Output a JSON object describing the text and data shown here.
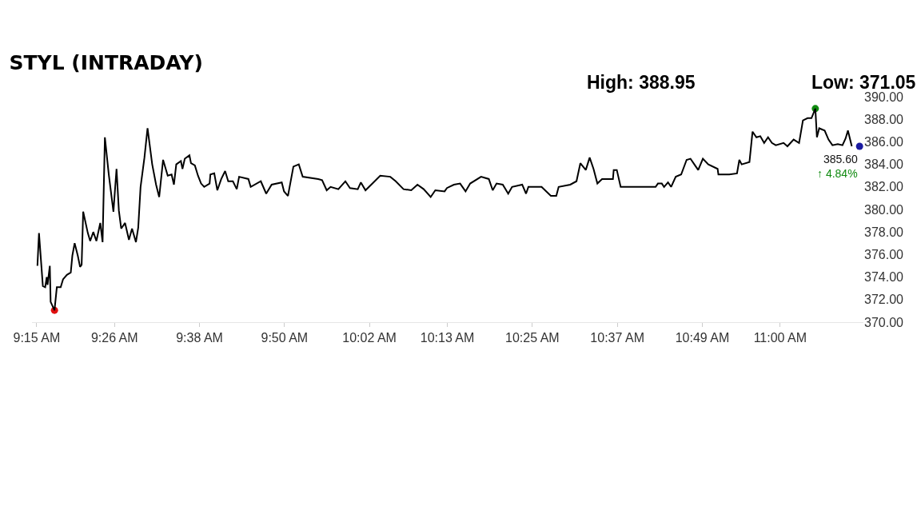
{
  "chart_data": {
    "type": "line",
    "title": "STYL (INTRADAY)",
    "annotations": [
      "High: 388.95",
      "Low: 371.05",
      {
        "text": "385.60",
        "x": 11.1869,
        "y": 385.6
      },
      {
        "text": "↑ 4.84%",
        "x": 11.1869,
        "y": 385.6
      }
    ],
    "series": [
      {
        "color": "#000000",
        "x": [
          9.2518,
          9.2555,
          9.2646,
          9.2701,
          9.2737,
          9.2756,
          9.281,
          9.2829,
          9.292,
          9.2975,
          9.3066,
          9.3121,
          9.3212,
          9.3303,
          9.334,
          9.3394,
          9.3468,
          9.3522,
          9.3559,
          9.3595,
          9.3705,
          9.376,
          9.3833,
          9.3906,
          9.3997,
          9.4052,
          9.4106,
          9.4198,
          9.4307,
          9.438,
          9.4435,
          9.449,
          9.4581,
          9.4672,
          9.4745,
          9.4837,
          9.4891,
          9.4946,
          9.5037,
          9.511,
          9.522,
          9.5311,
          9.5384,
          9.5476,
          9.5585,
          9.5676,
          9.5731,
          9.5786,
          9.5895,
          9.5932,
          9.5987,
          9.6096,
          9.6133,
          9.6224,
          9.6297,
          9.637,
          9.6443,
          9.6571,
          9.6589,
          9.668,
          9.6753,
          9.6845,
          9.6936,
          9.7009,
          9.7119,
          9.721,
          9.7265,
          9.7484,
          9.7538,
          9.7776,
          9.7903,
          9.8031,
          9.8269,
          9.8323,
          9.8415,
          9.8543,
          9.867,
          9.8762,
          9.9127,
          9.9218,
          9.9327,
          9.9419,
          9.9601,
          9.9766,
          9.9875,
          10.0058,
          10.0131,
          10.024,
          10.0404,
          10.0587,
          10.0824,
          10.0952,
          10.1135,
          10.1317,
          10.1463,
          10.1609,
          10.1774,
          10.1883,
          10.2102,
          10.2157,
          10.2321,
          10.2467,
          10.2595,
          10.2704,
          10.296,
          10.3143,
          10.3234,
          10.3325,
          10.3471,
          10.3599,
          10.369,
          10.3928,
          10.4019,
          10.4074,
          10.4384,
          10.4603,
          10.4731,
          10.4786,
          10.506,
          10.5206,
          10.5297,
          10.5425,
          10.5516,
          10.5607,
          10.5698,
          10.5808,
          10.6064,
          10.6082,
          10.6155,
          10.6246,
          10.6611,
          10.7068,
          10.7123,
          10.7214,
          10.7268,
          10.736,
          10.7433,
          10.7542,
          10.767,
          10.7798,
          10.7889,
          10.798,
          10.8071,
          10.8181,
          10.8309,
          10.8528,
          10.8546,
          10.8802,
          10.8984,
          10.9039,
          10.9094,
          10.9277,
          10.935,
          10.9441,
          10.9532,
          10.9623,
          10.9715,
          10.9806,
          10.9897,
          11.008,
          11.0171,
          11.0317,
          11.0445,
          11.0536,
          11.0645,
          11.0737,
          11.0828,
          11.0865,
          11.0919,
          11.1047,
          11.1138,
          11.123,
          11.1357,
          11.1467,
          11.154,
          11.1595,
          11.1686
        ],
        "values": [
          375.0,
          377.9,
          373.2,
          373.1,
          374.0,
          373.3,
          375.0,
          371.8,
          371.05,
          373.1,
          373.1,
          373.8,
          374.2,
          374.4,
          375.9,
          377.0,
          375.9,
          374.9,
          375.1,
          379.8,
          377.9,
          377.2,
          378.0,
          377.2,
          378.8,
          377.1,
          386.4,
          383.1,
          379.8,
          383.6,
          379.9,
          378.3,
          378.8,
          377.3,
          378.3,
          377.1,
          378.4,
          382.0,
          384.6,
          387.2,
          384.0,
          382.2,
          381.1,
          384.4,
          383.0,
          383.1,
          382.2,
          384.0,
          384.3,
          383.6,
          384.5,
          384.8,
          384.1,
          383.9,
          383.0,
          382.3,
          382.0,
          382.3,
          383.1,
          383.2,
          381.7,
          382.7,
          383.4,
          382.5,
          382.5,
          381.8,
          382.9,
          382.7,
          382.0,
          382.5,
          381.4,
          382.2,
          382.4,
          381.6,
          381.2,
          383.8,
          384.0,
          382.9,
          382.7,
          382.6,
          381.7,
          382.0,
          381.8,
          382.5,
          381.9,
          381.8,
          382.4,
          381.7,
          382.3,
          383.0,
          382.9,
          382.5,
          381.8,
          381.7,
          382.2,
          381.8,
          381.1,
          381.7,
          381.6,
          381.9,
          382.2,
          382.3,
          381.6,
          382.3,
          382.9,
          382.7,
          381.7,
          382.3,
          382.2,
          381.4,
          382.0,
          382.2,
          381.4,
          382.0,
          382.0,
          381.2,
          381.2,
          382.0,
          382.2,
          382.5,
          384.1,
          383.5,
          384.6,
          383.6,
          382.3,
          382.7,
          382.7,
          383.5,
          383.5,
          382.0,
          382.0,
          382.0,
          382.3,
          382.3,
          382.0,
          382.4,
          382.0,
          382.9,
          383.1,
          384.4,
          384.5,
          384.0,
          383.5,
          384.5,
          384.0,
          383.6,
          383.1,
          383.1,
          383.2,
          384.4,
          384.0,
          384.2,
          386.9,
          386.4,
          386.5,
          385.9,
          386.4,
          385.9,
          385.7,
          385.9,
          385.6,
          386.2,
          385.9,
          387.9,
          388.1,
          388.1,
          388.95,
          386.4,
          387.2,
          387.0,
          386.2,
          385.7,
          385.8,
          385.7,
          386.3,
          387.0,
          385.6
        ]
      },
      {
        "type": "scatter",
        "marker": "circle",
        "x": [
          9.292,
          11.0828,
          11.1869
        ],
        "values": [
          371.05,
          388.95,
          385.6
        ],
        "colors": [
          "#e01010",
          "#108a10",
          "#1a1aa0"
        ]
      }
    ],
    "xlim": [
      9.239,
      11.196
    ],
    "xticks": [
      {
        "value": 9.25,
        "label": "9:15 AM"
      },
      {
        "value": 9.4333,
        "label": "9:26 AM"
      },
      {
        "value": 9.6333,
        "label": "9:38 AM"
      },
      {
        "value": 9.8333,
        "label": "9:50 AM"
      },
      {
        "value": 10.0333,
        "label": "10:02 AM"
      },
      {
        "value": 10.2167,
        "label": "10:13 AM"
      },
      {
        "value": 10.4167,
        "label": "10:25 AM"
      },
      {
        "value": 10.6167,
        "label": "10:37 AM"
      },
      {
        "value": 10.8167,
        "label": "10:49 AM"
      },
      {
        "value": 11.0,
        "label": "11:00 AM"
      }
    ],
    "ylim": [
      370,
      390
    ],
    "yticks": [
      {
        "value": 370,
        "label": "370.00"
      },
      {
        "value": 372,
        "label": "372.00"
      },
      {
        "value": 374,
        "label": "374.00"
      },
      {
        "value": 376,
        "label": "376.00"
      },
      {
        "value": 378,
        "label": "378.00"
      },
      {
        "value": 380,
        "label": "380.00"
      },
      {
        "value": 382,
        "label": "382.00"
      },
      {
        "value": 384,
        "label": "384.00"
      },
      {
        "value": 386,
        "label": "386.00"
      },
      {
        "value": 388,
        "label": "388.00"
      },
      {
        "value": 390,
        "label": "390.00"
      }
    ],
    "line_style": "solid"
  }
}
